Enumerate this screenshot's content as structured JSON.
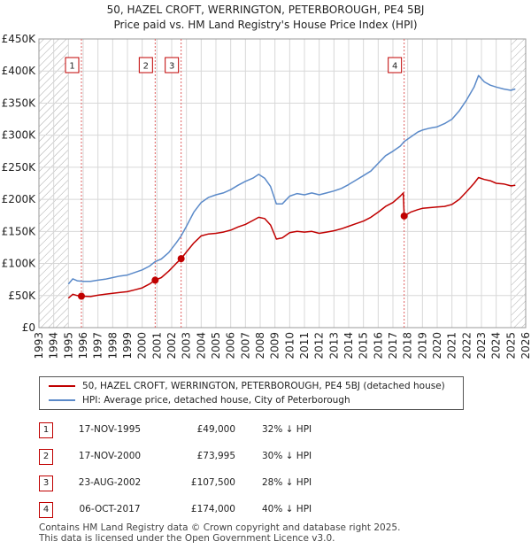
{
  "title_line1": "50, HAZEL CROFT, WERRINGTON, PETERBOROUGH, PE4 5BJ",
  "title_line2": "Price paid vs. HM Land Registry's House Price Index (HPI)",
  "colors": {
    "price_paid": "#c00000",
    "hpi": "#5b8ac9",
    "grid": "#d8d8d8",
    "hatch": "#aaaaaa"
  },
  "chart_data": {
    "type": "line",
    "ylim": [
      0,
      450000
    ],
    "xlim": [
      1993,
      2026
    ],
    "y_ticks": [
      0,
      50000,
      100000,
      150000,
      200000,
      250000,
      300000,
      350000,
      400000,
      450000
    ],
    "y_tick_labels": [
      "£0",
      "£50K",
      "£100K",
      "£150K",
      "£200K",
      "£250K",
      "£300K",
      "£350K",
      "£400K",
      "£450K"
    ],
    "x_ticks": [
      1993,
      1994,
      1995,
      1996,
      1997,
      1998,
      1999,
      2000,
      2001,
      2002,
      2003,
      2004,
      2005,
      2006,
      2007,
      2008,
      2009,
      2010,
      2011,
      2012,
      2013,
      2014,
      2015,
      2016,
      2017,
      2018,
      2019,
      2020,
      2021,
      2022,
      2023,
      2024,
      2025,
      2026
    ],
    "x_tick_labels": [
      "1993",
      "1994",
      "1995",
      "1996",
      "1997",
      "1998",
      "1999",
      "2000",
      "2001",
      "2002",
      "2003",
      "2004",
      "2005",
      "2006",
      "2007",
      "2008",
      "2009",
      "2010",
      "2011",
      "2012",
      "2013",
      "2014",
      "2015",
      "2016",
      "2017",
      "2018",
      "2019",
      "2020",
      "2021",
      "2022",
      "2023",
      "2024",
      "2025",
      "2026"
    ],
    "hatched_ranges": [
      [
        1993,
        1995.0
      ],
      [
        2025.0,
        2026
      ]
    ],
    "series": [
      {
        "name": "50, HAZEL CROFT, WERRINGTON, PETERBOROUGH, PE4 5BJ (detached house)",
        "color": "#c00000",
        "points": [
          [
            1995.0,
            46000
          ],
          [
            1995.3,
            52000
          ],
          [
            1995.6,
            50000
          ],
          [
            1995.88,
            49000
          ],
          [
            1996.5,
            48500
          ],
          [
            1997,
            50500
          ],
          [
            1997.5,
            52000
          ],
          [
            1998,
            53500
          ],
          [
            1998.5,
            55000
          ],
          [
            1999,
            56000
          ],
          [
            1999.5,
            59000
          ],
          [
            2000,
            62000
          ],
          [
            2000.5,
            68000
          ],
          [
            2000.88,
            73995
          ],
          [
            2001.3,
            78000
          ],
          [
            2001.8,
            88000
          ],
          [
            2002.3,
            100000
          ],
          [
            2002.64,
            107500
          ],
          [
            2003,
            118000
          ],
          [
            2003.5,
            132000
          ],
          [
            2004,
            143000
          ],
          [
            2004.5,
            146000
          ],
          [
            2005,
            147000
          ],
          [
            2005.5,
            149000
          ],
          [
            2006,
            152000
          ],
          [
            2006.5,
            157000
          ],
          [
            2007,
            161000
          ],
          [
            2007.5,
            167000
          ],
          [
            2007.9,
            172000
          ],
          [
            2008.3,
            170000
          ],
          [
            2008.7,
            160000
          ],
          [
            2009.1,
            138000
          ],
          [
            2009.5,
            140000
          ],
          [
            2010,
            148000
          ],
          [
            2010.5,
            150000
          ],
          [
            2011,
            149000
          ],
          [
            2011.5,
            150000
          ],
          [
            2012,
            147000
          ],
          [
            2012.5,
            149000
          ],
          [
            2013,
            151000
          ],
          [
            2013.5,
            154000
          ],
          [
            2014,
            158000
          ],
          [
            2014.5,
            162000
          ],
          [
            2015,
            166000
          ],
          [
            2015.5,
            172000
          ],
          [
            2016,
            180000
          ],
          [
            2016.5,
            189000
          ],
          [
            2017,
            195000
          ],
          [
            2017.5,
            205000
          ],
          [
            2017.7,
            210000
          ],
          [
            2017.76,
            174000
          ],
          [
            2018.2,
            180000
          ],
          [
            2018.7,
            184000
          ],
          [
            2019,
            186000
          ],
          [
            2019.5,
            187000
          ],
          [
            2020,
            188000
          ],
          [
            2020.5,
            189000
          ],
          [
            2021,
            192000
          ],
          [
            2021.5,
            200000
          ],
          [
            2022,
            212000
          ],
          [
            2022.5,
            225000
          ],
          [
            2022.8,
            234000
          ],
          [
            2023.2,
            231000
          ],
          [
            2023.6,
            229000
          ],
          [
            2024,
            225000
          ],
          [
            2024.5,
            224000
          ],
          [
            2025,
            221000
          ],
          [
            2025.3,
            222000
          ]
        ]
      },
      {
        "name": "HPI: Average price, detached house, City of Peterborough",
        "color": "#5b8ac9",
        "points": [
          [
            1995.0,
            68000
          ],
          [
            1995.3,
            76000
          ],
          [
            1995.6,
            73000
          ],
          [
            1996,
            72000
          ],
          [
            1996.5,
            72000
          ],
          [
            1997,
            74000
          ],
          [
            1997.5,
            75500
          ],
          [
            1998,
            78000
          ],
          [
            1998.5,
            80500
          ],
          [
            1999,
            82000
          ],
          [
            1999.5,
            86000
          ],
          [
            2000,
            90000
          ],
          [
            2000.5,
            96000
          ],
          [
            2000.88,
            103000
          ],
          [
            2001.3,
            107000
          ],
          [
            2001.8,
            117000
          ],
          [
            2002.3,
            132000
          ],
          [
            2002.64,
            143000
          ],
          [
            2003,
            158000
          ],
          [
            2003.5,
            180000
          ],
          [
            2004,
            195000
          ],
          [
            2004.5,
            203000
          ],
          [
            2005,
            207000
          ],
          [
            2005.5,
            210000
          ],
          [
            2006,
            215000
          ],
          [
            2006.5,
            222000
          ],
          [
            2007,
            228000
          ],
          [
            2007.5,
            233000
          ],
          [
            2007.9,
            239000
          ],
          [
            2008.3,
            233000
          ],
          [
            2008.7,
            220000
          ],
          [
            2009.1,
            193000
          ],
          [
            2009.5,
            193000
          ],
          [
            2010,
            205000
          ],
          [
            2010.5,
            209000
          ],
          [
            2011,
            207000
          ],
          [
            2011.5,
            210000
          ],
          [
            2012,
            207000
          ],
          [
            2012.5,
            210000
          ],
          [
            2013,
            213000
          ],
          [
            2013.5,
            217000
          ],
          [
            2014,
            223000
          ],
          [
            2014.5,
            230000
          ],
          [
            2015,
            237000
          ],
          [
            2015.5,
            244000
          ],
          [
            2016,
            256000
          ],
          [
            2016.5,
            268000
          ],
          [
            2017,
            275000
          ],
          [
            2017.5,
            283000
          ],
          [
            2017.76,
            290000
          ],
          [
            2018.2,
            297000
          ],
          [
            2018.7,
            305000
          ],
          [
            2019,
            308000
          ],
          [
            2019.5,
            311000
          ],
          [
            2020,
            313000
          ],
          [
            2020.5,
            318000
          ],
          [
            2021,
            325000
          ],
          [
            2021.5,
            338000
          ],
          [
            2022,
            355000
          ],
          [
            2022.5,
            375000
          ],
          [
            2022.8,
            393000
          ],
          [
            2023.2,
            383000
          ],
          [
            2023.6,
            378000
          ],
          [
            2024,
            375000
          ],
          [
            2024.5,
            372000
          ],
          [
            2025,
            370000
          ],
          [
            2025.3,
            372000
          ]
        ]
      }
    ],
    "markers": [
      {
        "label": "1",
        "x": 1995.88,
        "y": 49000
      },
      {
        "label": "2",
        "x": 2000.88,
        "y": 73995
      },
      {
        "label": "3",
        "x": 2002.64,
        "y": 107500
      },
      {
        "label": "4",
        "x": 2017.76,
        "y": 174000
      }
    ]
  },
  "legend": {
    "price_paid_label": "50, HAZEL CROFT, WERRINGTON, PETERBOROUGH, PE4 5BJ (detached house)",
    "hpi_label": "HPI: Average price, detached house, City of Peterborough"
  },
  "sales": [
    {
      "num": "1",
      "date": "17-NOV-1995",
      "price": "£49,000",
      "hpi": "32% ↓ HPI"
    },
    {
      "num": "2",
      "date": "17-NOV-2000",
      "price": "£73,995",
      "hpi": "30% ↓ HPI"
    },
    {
      "num": "3",
      "date": "23-AUG-2002",
      "price": "£107,500",
      "hpi": "28% ↓ HPI"
    },
    {
      "num": "4",
      "date": "06-OCT-2017",
      "price": "£174,000",
      "hpi": "40% ↓ HPI"
    }
  ],
  "footer_line1": "Contains HM Land Registry data © Crown copyright and database right 2025.",
  "footer_line2": "This data is licensed under the Open Government Licence v3.0."
}
